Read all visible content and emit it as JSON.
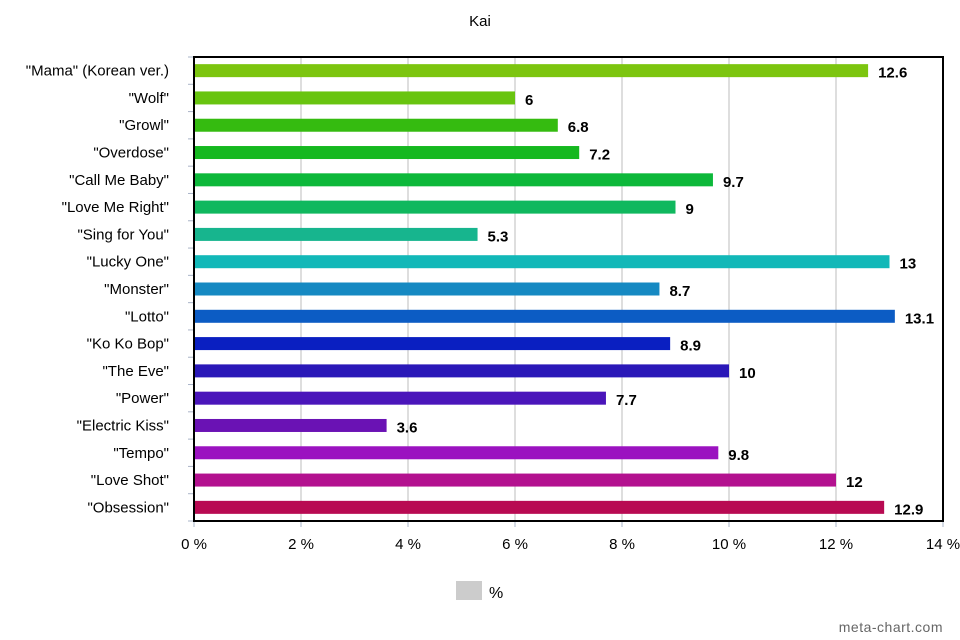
{
  "chart_data": {
    "type": "bar",
    "orientation": "horizontal",
    "title": "Kai",
    "categories": [
      "\"Mama\" (Korean ver.)",
      "\"Wolf\"",
      "\"Growl\"",
      "\"Overdose\"",
      "\"Call Me Baby\"",
      "\"Love Me Right\"",
      "\"Sing for You\"",
      "\"Lucky One\"",
      "\"Monster\"",
      "\"Lotto\"",
      "\"Ko Ko Bop\"",
      "\"The Eve\"",
      "\"Power\"",
      "\"Electric Kiss\"",
      "\"Tempo\"",
      "\"Love Shot\"",
      "\"Obsession\""
    ],
    "values": [
      12.6,
      6,
      6.8,
      7.2,
      9.7,
      9,
      5.3,
      13,
      8.7,
      13.1,
      8.9,
      10,
      7.7,
      3.6,
      9.8,
      12,
      12.9
    ],
    "value_labels": [
      "12.6",
      "6",
      "6.8",
      "7.2",
      "9.7",
      "9",
      "5.3",
      "13",
      "8.7",
      "13.1",
      "8.9",
      "10",
      "7.7",
      "3.6",
      "9.8",
      "12",
      "12.9"
    ],
    "colors": [
      "#7cc50f",
      "#68c40f",
      "#35bb10",
      "#15b81f",
      "#0db83a",
      "#10b85e",
      "#17b58e",
      "#12b8b8",
      "#1689c2",
      "#0c5cc4",
      "#0a1fc1",
      "#2a18b8",
      "#4a15ba",
      "#6a12b4",
      "#9b12c0",
      "#b3118f",
      "#b80a52"
    ],
    "xlim": [
      0,
      14
    ],
    "xticks": [
      0,
      2,
      4,
      6,
      8,
      10,
      12,
      14
    ],
    "xtick_labels": [
      "0 %",
      "2 %",
      "4 %",
      "6 %",
      "8 %",
      "10 %",
      "12 %",
      "14 %"
    ],
    "grid": true,
    "legend": {
      "label": "%",
      "position": "bottom-center",
      "color": "#cccccc"
    }
  },
  "watermark": "meta-chart.com"
}
